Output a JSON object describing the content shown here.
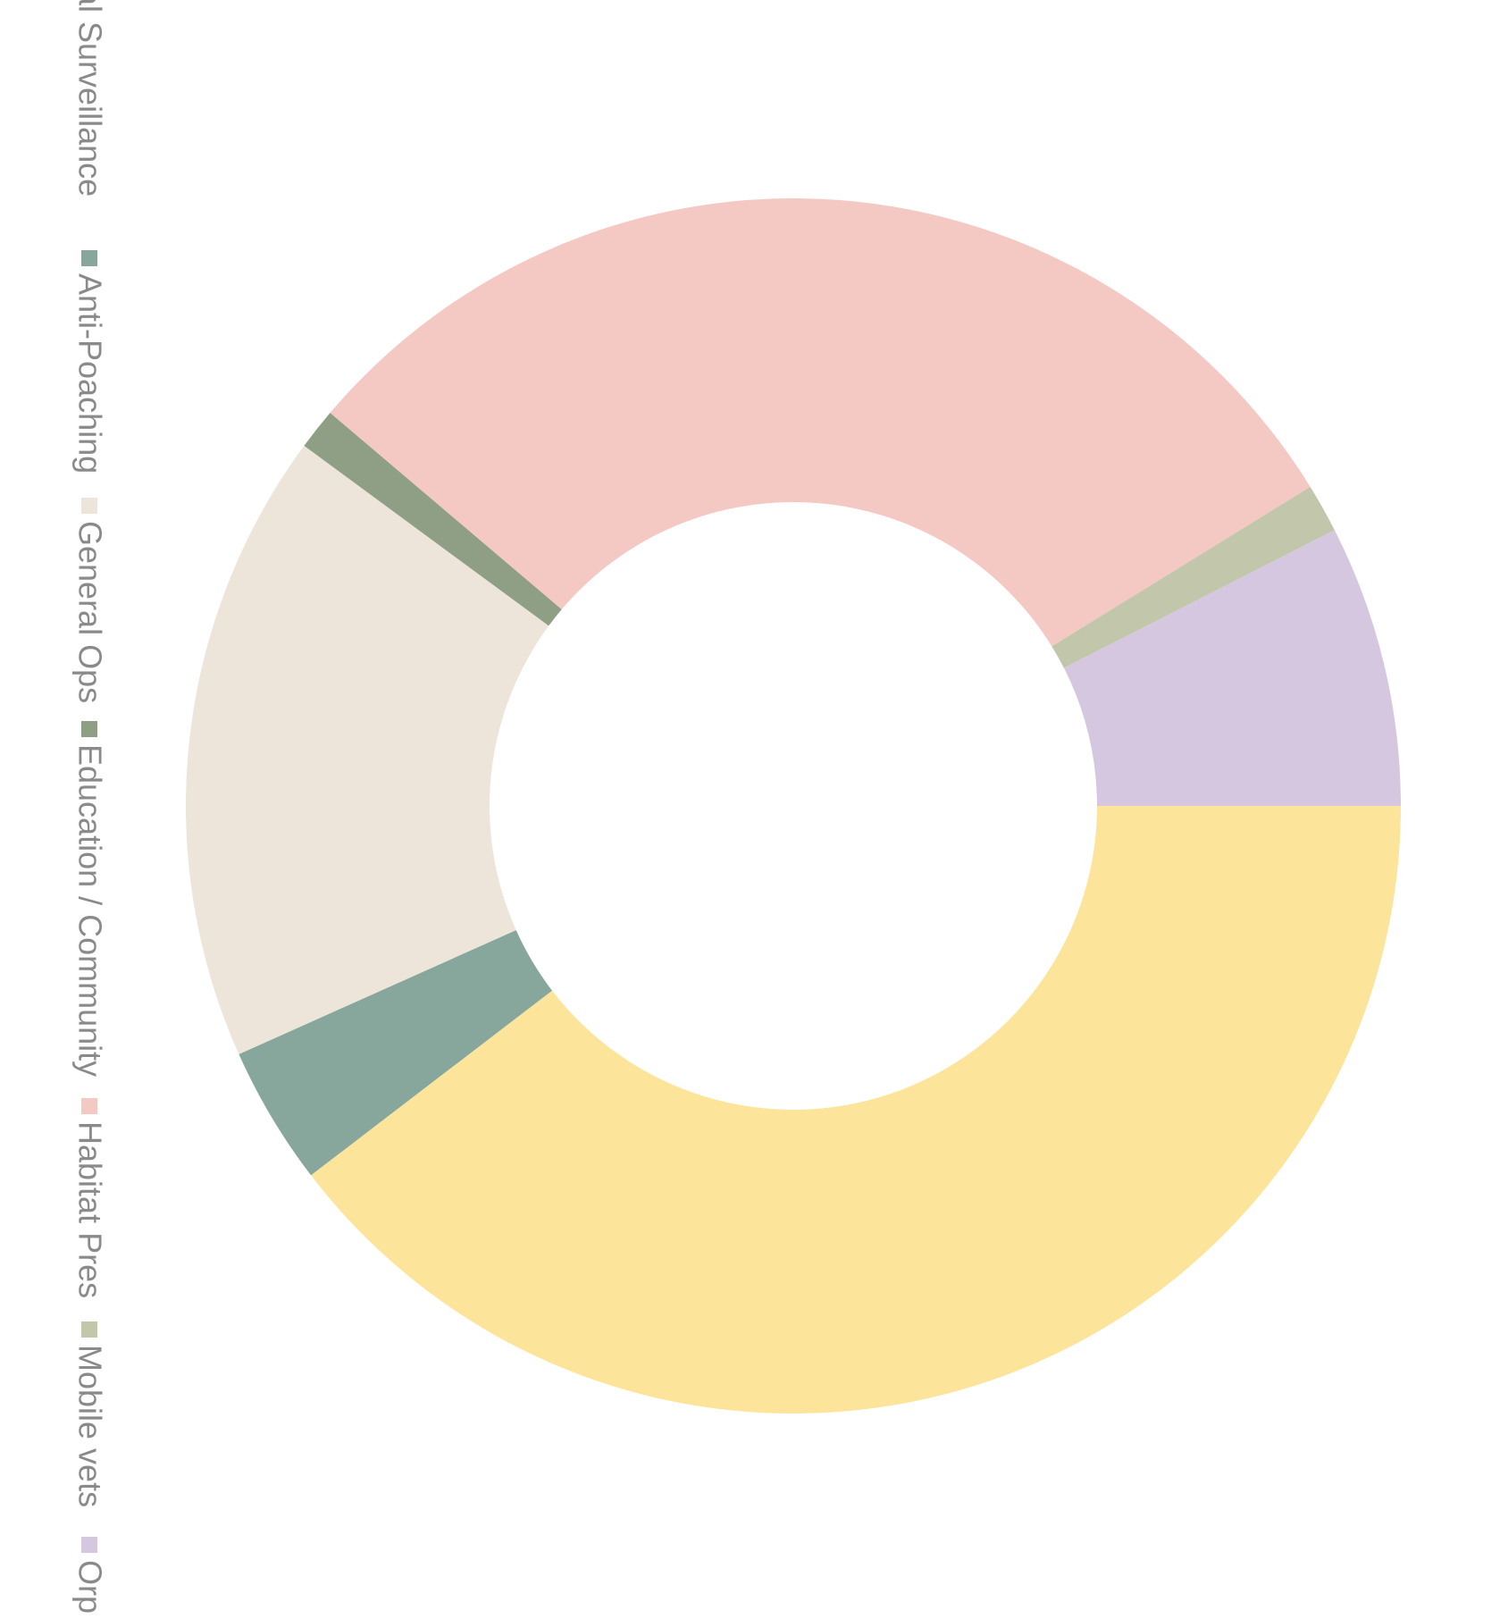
{
  "chart_data": {
    "type": "donut",
    "categories": [
      "erial Surveillance",
      "Anti-Poaching",
      "General Ops",
      "Education / Community",
      "Habitat Pres",
      "Mobile vets",
      "Orp"
    ],
    "values": [
      39.6,
      3.7,
      16.8,
      1.1,
      30.0,
      1.3,
      7.5
    ],
    "colors": [
      "#fce59a",
      "#87a79d",
      "#ede5da",
      "#8f9f86",
      "#f4c9c3",
      "#c2c6ab",
      "#d5c7e0"
    ],
    "legend": "left"
  }
}
